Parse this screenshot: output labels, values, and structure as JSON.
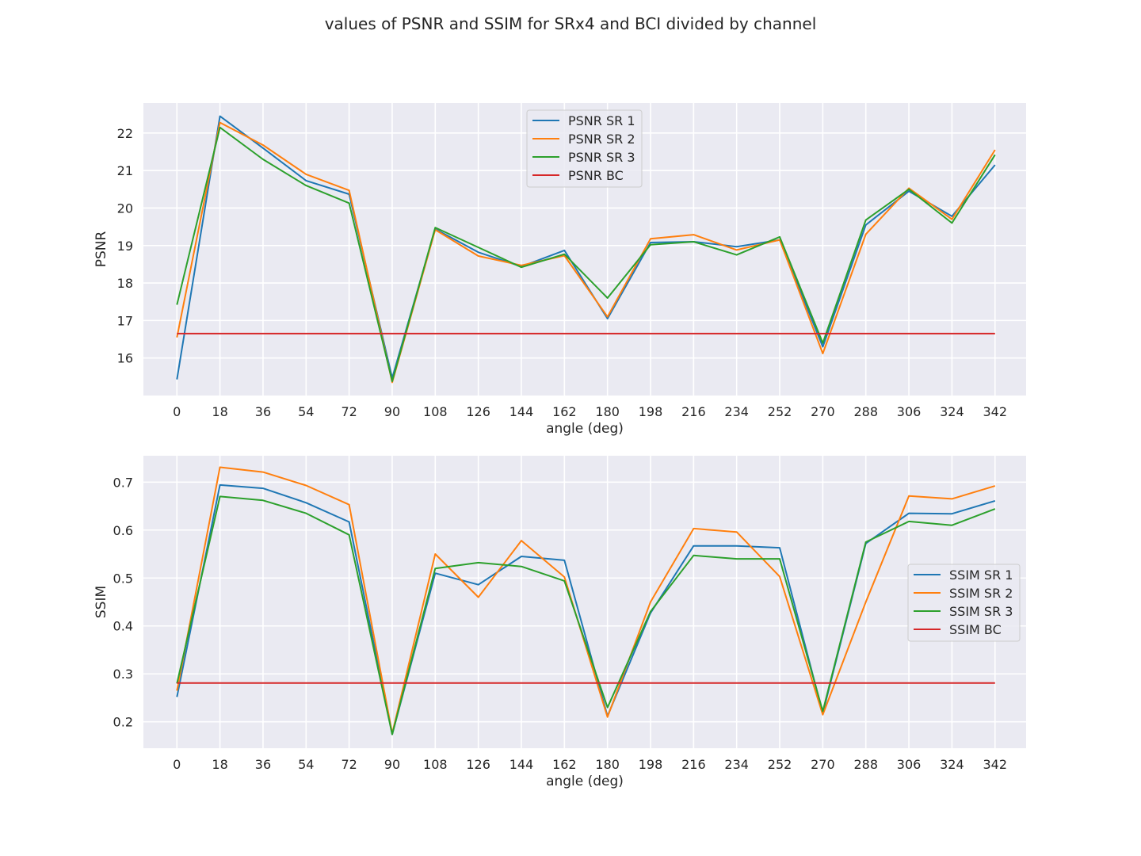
{
  "figure": {
    "title": "values of PSNR and SSIM for SRx4 and BCI divided by channel"
  },
  "chart_data": [
    {
      "type": "line",
      "title": "",
      "xlabel": "angle (deg)",
      "ylabel": "PSNR",
      "x": [
        0,
        18,
        36,
        54,
        72,
        90,
        108,
        126,
        144,
        162,
        180,
        198,
        216,
        234,
        252,
        270,
        288,
        306,
        324,
        342
      ],
      "xlim": [
        -14,
        355
      ],
      "ylim": [
        15.0,
        22.8
      ],
      "yticks": [
        16,
        17,
        18,
        19,
        20,
        21,
        22
      ],
      "grid": true,
      "legend": "top-center",
      "series": [
        {
          "name": "PSNR SR 1",
          "color": "#1f77b4",
          "values": [
            15.43,
            22.45,
            21.6,
            20.73,
            20.37,
            15.47,
            19.44,
            18.82,
            18.44,
            18.87,
            17.05,
            19.08,
            19.1,
            18.97,
            19.15,
            16.3,
            19.55,
            20.45,
            19.78,
            21.15
          ]
        },
        {
          "name": "PSNR SR 2",
          "color": "#ff7f0e",
          "values": [
            16.55,
            22.28,
            21.68,
            20.9,
            20.47,
            15.35,
            19.42,
            18.72,
            18.47,
            18.73,
            17.1,
            19.18,
            19.29,
            18.88,
            19.15,
            16.12,
            19.3,
            20.53,
            19.7,
            21.55
          ]
        },
        {
          "name": "PSNR SR 3",
          "color": "#2ca02c",
          "values": [
            17.42,
            22.15,
            21.3,
            20.6,
            20.13,
            15.38,
            19.48,
            18.95,
            18.42,
            18.77,
            17.6,
            19.02,
            19.1,
            18.75,
            19.23,
            16.4,
            19.68,
            20.5,
            19.6,
            21.42
          ]
        },
        {
          "name": "PSNR BC",
          "color": "#d62728",
          "values": [
            16.65,
            16.65,
            16.65,
            16.65,
            16.65,
            16.65,
            16.65,
            16.65,
            16.65,
            16.65,
            16.65,
            16.65,
            16.65,
            16.65,
            16.65,
            16.65,
            16.65,
            16.65,
            16.65,
            16.65
          ]
        }
      ]
    },
    {
      "type": "line",
      "title": "",
      "xlabel": "angle (deg)",
      "ylabel": "SSIM",
      "x": [
        0,
        18,
        36,
        54,
        72,
        90,
        108,
        126,
        144,
        162,
        180,
        198,
        216,
        234,
        252,
        270,
        288,
        306,
        324,
        342
      ],
      "xlim": [
        -14,
        355
      ],
      "ylim": [
        0.145,
        0.755
      ],
      "yticks": [
        0.2,
        0.3,
        0.4,
        0.5,
        0.6,
        0.7
      ],
      "grid": true,
      "legend": "center-right",
      "series": [
        {
          "name": "SSIM SR 1",
          "color": "#1f77b4",
          "values": [
            0.252,
            0.694,
            0.687,
            0.657,
            0.617,
            0.174,
            0.51,
            0.486,
            0.545,
            0.537,
            0.212,
            0.427,
            0.567,
            0.567,
            0.563,
            0.218,
            0.572,
            0.635,
            0.634,
            0.661
          ]
        },
        {
          "name": "SSIM SR 2",
          "color": "#ff7f0e",
          "values": [
            0.265,
            0.731,
            0.721,
            0.693,
            0.653,
            0.176,
            0.55,
            0.46,
            0.578,
            0.502,
            0.21,
            0.45,
            0.603,
            0.596,
            0.503,
            0.215,
            0.45,
            0.671,
            0.665,
            0.692
          ]
        },
        {
          "name": "SSIM SR 3",
          "color": "#2ca02c",
          "values": [
            0.28,
            0.67,
            0.662,
            0.635,
            0.59,
            0.174,
            0.52,
            0.532,
            0.524,
            0.494,
            0.23,
            0.43,
            0.547,
            0.54,
            0.54,
            0.222,
            0.575,
            0.618,
            0.61,
            0.644
          ]
        },
        {
          "name": "SSIM BC",
          "color": "#d62728",
          "values": [
            0.281,
            0.281,
            0.281,
            0.281,
            0.281,
            0.281,
            0.281,
            0.281,
            0.281,
            0.281,
            0.281,
            0.281,
            0.281,
            0.281,
            0.281,
            0.281,
            0.281,
            0.281,
            0.281,
            0.281
          ]
        }
      ]
    }
  ]
}
